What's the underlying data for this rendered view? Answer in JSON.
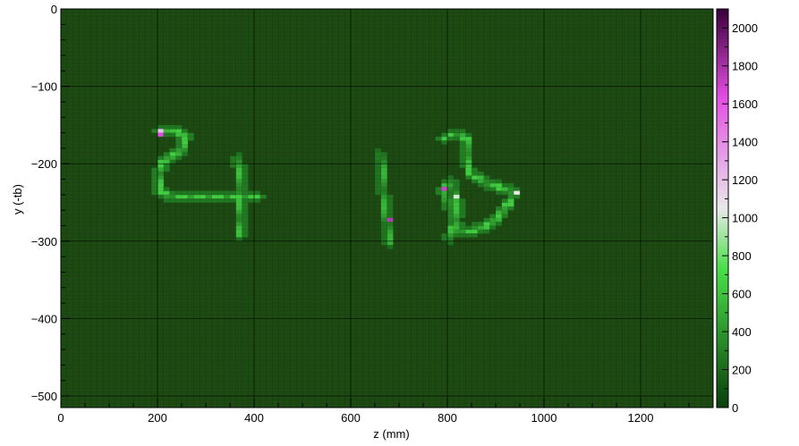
{
  "chart_data": {
    "type": "heatmap",
    "title": "",
    "xlabel": "z (mm)",
    "ylabel": "y (-tb)",
    "xlim": [
      0,
      1350
    ],
    "ylim": [
      -515,
      0
    ],
    "x_ticks": [
      0,
      200,
      400,
      600,
      800,
      1000,
      1200
    ],
    "y_ticks": [
      0,
      -100,
      -200,
      -300,
      -400,
      -500
    ],
    "x_tick_labels": [
      "0",
      "200",
      "400",
      "600",
      "800",
      "1000",
      "1200"
    ],
    "y_tick_labels": [
      "0",
      "−100",
      "−200",
      "−300",
      "−400",
      "−500"
    ],
    "colorbar": {
      "min": 0,
      "max": 2100,
      "ticks": [
        0,
        200,
        400,
        600,
        800,
        1000,
        1200,
        1400,
        1600,
        1800,
        2000
      ],
      "tick_labels": [
        "0",
        "200",
        "400",
        "600",
        "800",
        "1000",
        "1200",
        "1400",
        "1600",
        "1800",
        "2000"
      ],
      "colormap": "green-white-magenta"
    },
    "background_level": 40,
    "grid": true,
    "colors": {
      "background_cell": "#1d4a12",
      "grid_line": "#000000",
      "low": "#0b3d0b",
      "mid": "#49e049",
      "white": "#e9e9e9",
      "high": "#e34ee3",
      "top": "#3a003a"
    },
    "tracks": [
      {
        "level": 650,
        "points": [
          [
            205,
            -160
          ],
          [
            235,
            -158
          ],
          [
            258,
            -162
          ],
          [
            252,
            -180
          ],
          [
            232,
            -188
          ],
          [
            215,
            -195
          ],
          [
            205,
            -207
          ],
          [
            200,
            -222
          ],
          [
            206,
            -238
          ],
          [
            240,
            -242
          ],
          [
            290,
            -244
          ],
          [
            340,
            -242
          ],
          [
            375,
            -243
          ],
          [
            410,
            -244
          ]
        ]
      },
      {
        "level": 600,
        "points": [
          [
            368,
            -192
          ],
          [
            370,
            -220
          ],
          [
            372,
            -250
          ],
          [
            373,
            -278
          ],
          [
            372,
            -292
          ]
        ]
      },
      {
        "level": 550,
        "points": [
          [
            662,
            -188
          ],
          [
            666,
            -220
          ],
          [
            670,
            -248
          ],
          [
            675,
            -275
          ],
          [
            677,
            -305
          ]
        ]
      },
      {
        "level": 650,
        "points": [
          [
            790,
            -234
          ],
          [
            800,
            -250
          ],
          [
            812,
            -268
          ],
          [
            822,
            -285
          ],
          [
            836,
            -290
          ],
          [
            862,
            -285
          ],
          [
            890,
            -276
          ],
          [
            915,
            -262
          ],
          [
            938,
            -238
          ]
        ]
      },
      {
        "level": 600,
        "points": [
          [
            790,
            -236
          ],
          [
            806,
            -222
          ],
          [
            818,
            -246
          ],
          [
            822,
            -264
          ],
          [
            805,
            -296
          ]
        ]
      },
      {
        "level": 650,
        "points": [
          [
            938,
            -238
          ],
          [
            912,
            -232
          ],
          [
            888,
            -226
          ],
          [
            865,
            -220
          ],
          [
            848,
            -214
          ],
          [
            842,
            -200
          ],
          [
            842,
            -182
          ],
          [
            838,
            -166
          ],
          [
            818,
            -163
          ],
          [
            792,
            -166
          ]
        ]
      }
    ],
    "hotspots": [
      {
        "x": 212,
        "y": -162,
        "value": 1650
      },
      {
        "x": 205,
        "y": -158,
        "value": 1200
      },
      {
        "x": 675,
        "y": -272,
        "value": 1750
      },
      {
        "x": 790,
        "y": -235,
        "value": 1700
      },
      {
        "x": 813,
        "y": -245,
        "value": 1000
      },
      {
        "x": 938,
        "y": -236,
        "value": 1050
      }
    ]
  }
}
